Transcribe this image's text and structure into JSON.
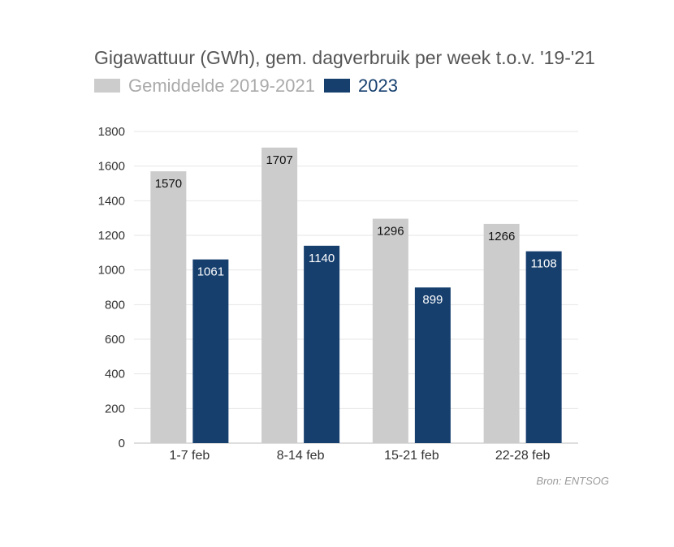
{
  "chart_data": {
    "type": "bar",
    "title": "Gigawattuur (GWh), gem. dagverbruik per week t.o.v. '19-'21",
    "categories": [
      "1-7 feb",
      "8-14 feb",
      "15-21 feb",
      "22-28 feb"
    ],
    "series": [
      {
        "name": "Gemiddelde 2019-2021",
        "values": [
          1570,
          1707,
          1296,
          1266
        ],
        "color": "#cccccc",
        "label_color": "#111111"
      },
      {
        "name": "2023",
        "values": [
          1061,
          1140,
          899,
          1108
        ],
        "color": "#163f6e",
        "label_color": "#ffffff"
      }
    ],
    "ylim": [
      0,
      1800
    ],
    "yticks": [
      "0",
      "200",
      "400",
      "600",
      "800",
      "1000",
      "1200",
      "1400",
      "1600",
      "1800"
    ],
    "grid": true,
    "legend_position": "top-left"
  },
  "source": "Bron: ENTSOG",
  "legend_text_colors": [
    "#aaaaaa",
    "#163f6e"
  ]
}
